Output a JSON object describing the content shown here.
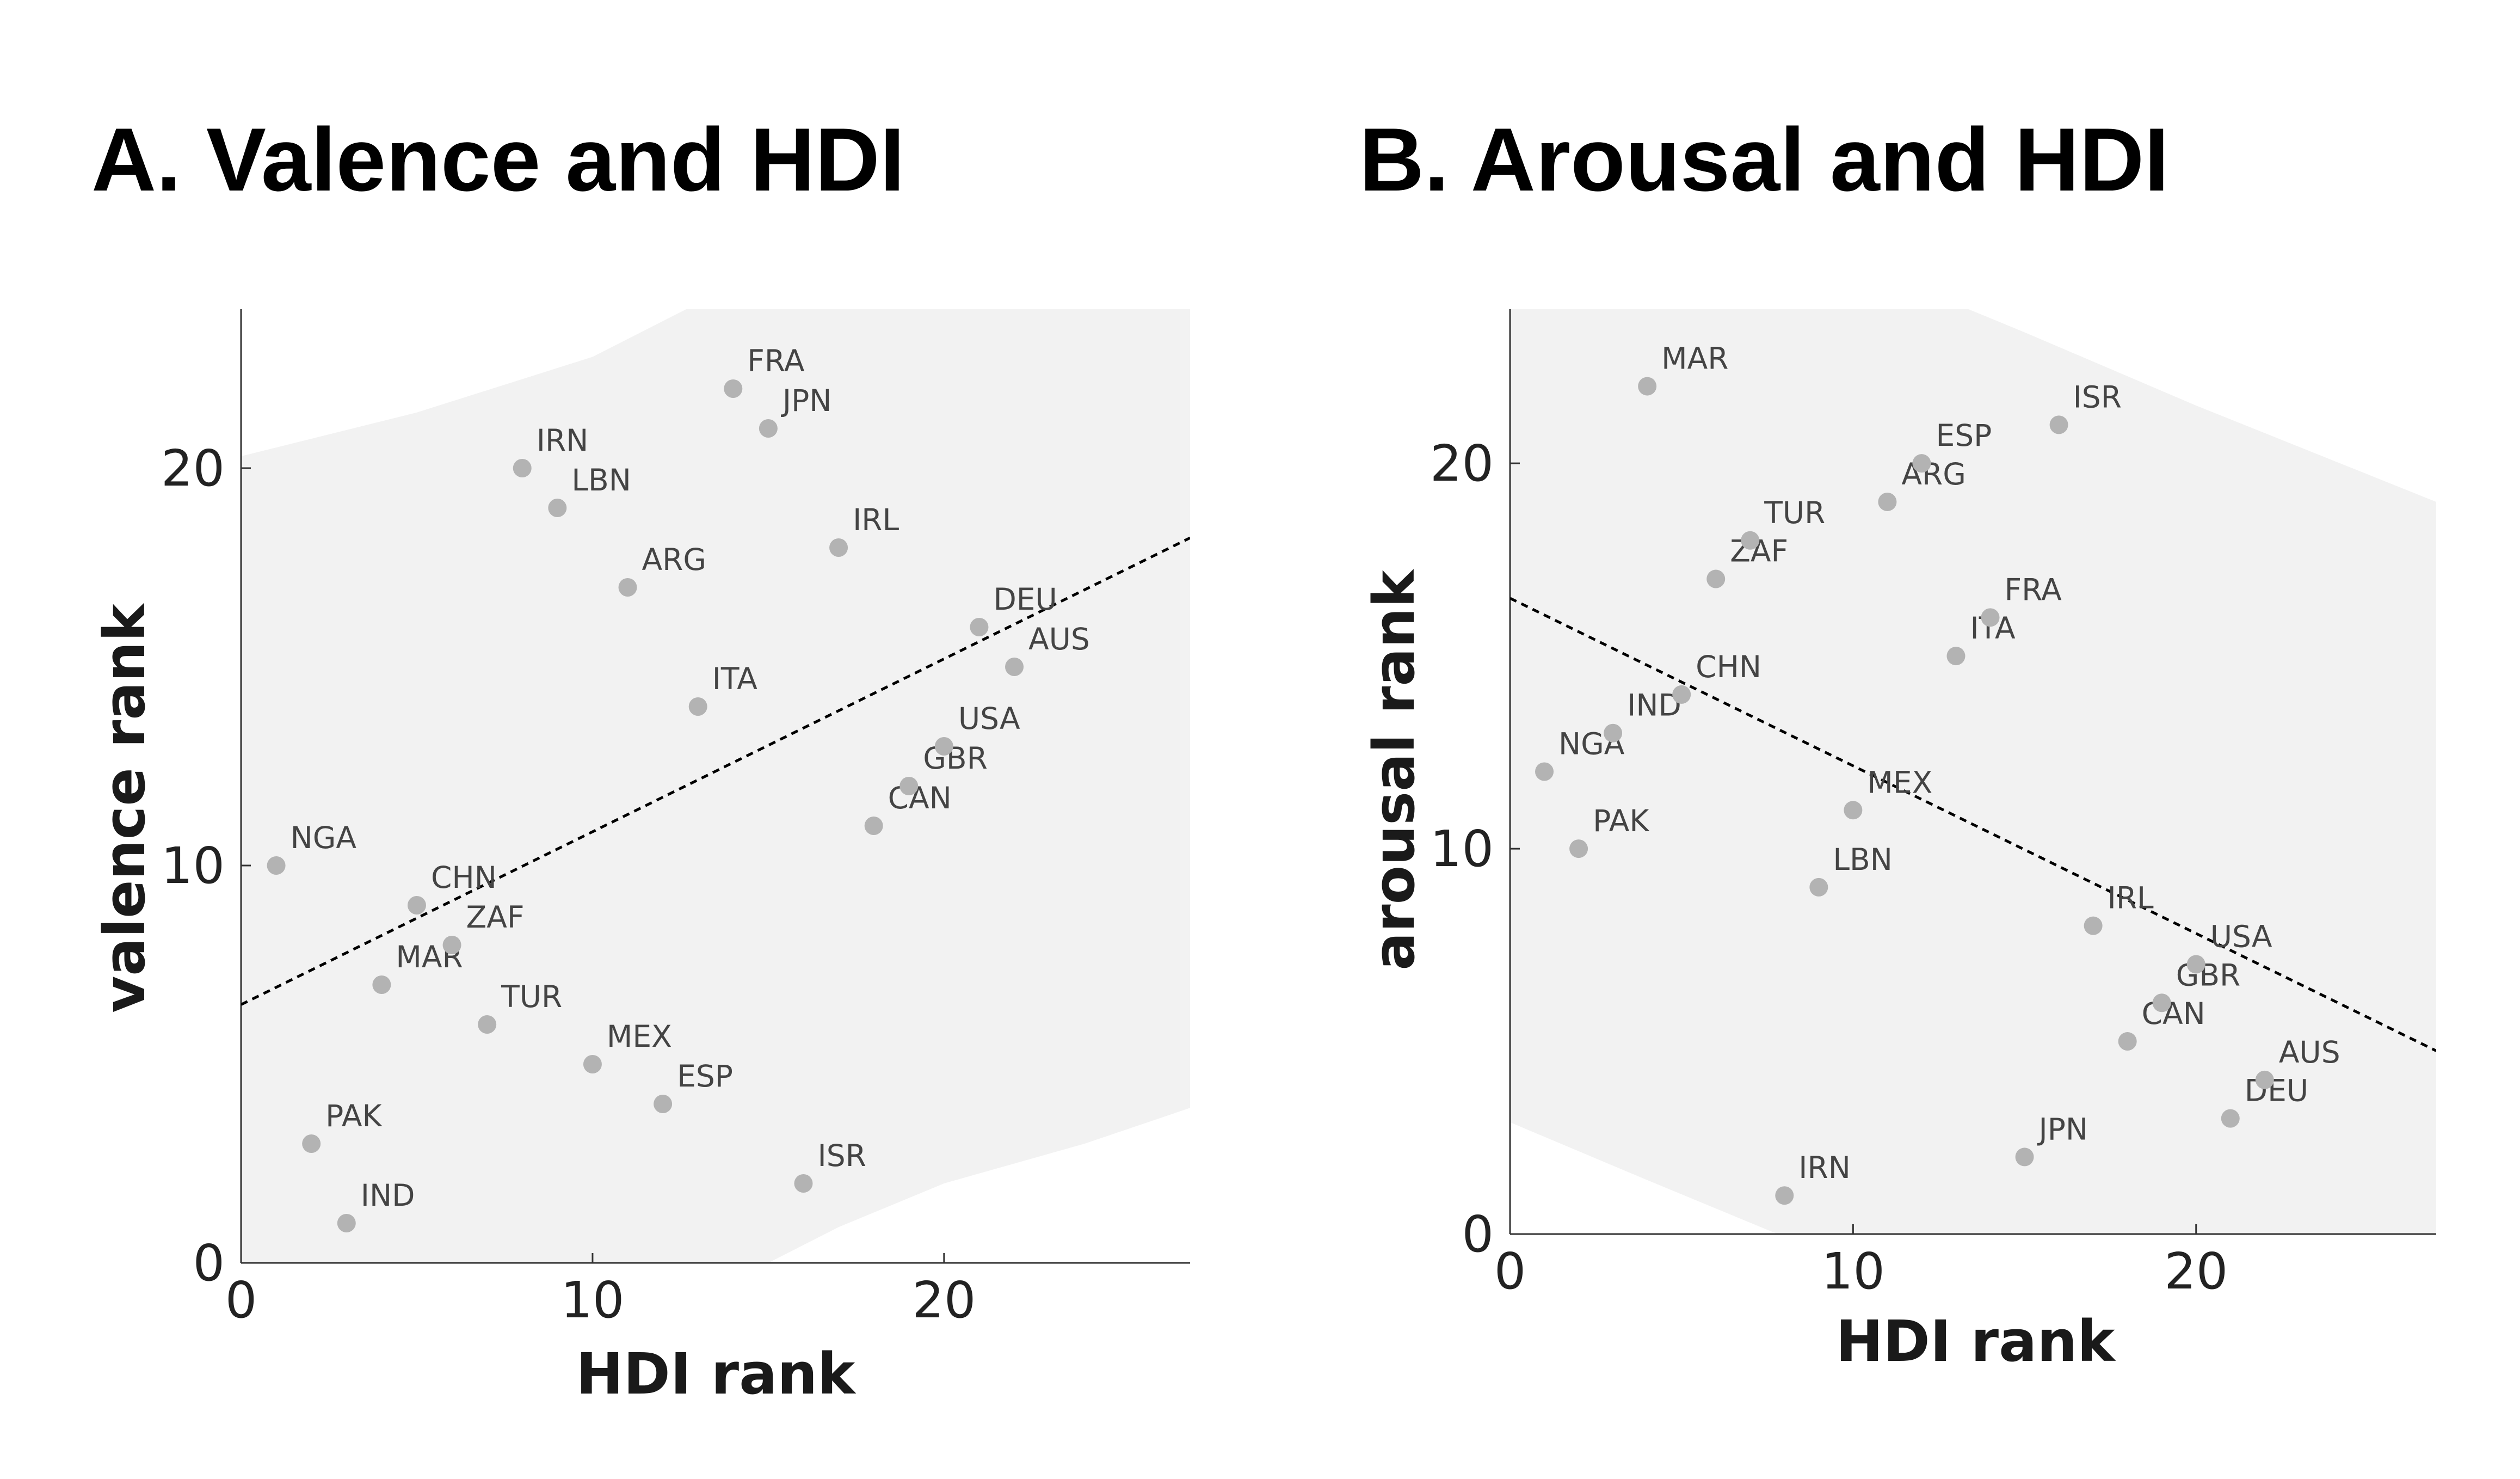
{
  "chart_data": [
    {
      "id": "A",
      "type": "scatter",
      "title": "A. Valence and HDI",
      "xlabel": "HDI rank",
      "ylabel": "valence rank",
      "xlim": [
        0,
        27
      ],
      "ylim": [
        0,
        24
      ],
      "xticks": [
        0,
        10,
        20
      ],
      "yticks": [
        0,
        10,
        20
      ],
      "grid": false,
      "point_color": "#b3b3b3",
      "band_color": "#f2f2f2",
      "fit_line": {
        "style": "dashed",
        "y_at_x0": 6.5,
        "slope": 0.435
      },
      "confidence_band": {
        "upper": [
          [
            0,
            20.3
          ],
          [
            5,
            21.4
          ],
          [
            10,
            22.8
          ],
          [
            14,
            24.6
          ]
        ],
        "lower": [
          [
            15,
            0
          ],
          [
            17,
            0.9
          ],
          [
            20,
            2.0
          ],
          [
            24,
            3.0
          ],
          [
            27,
            3.9
          ]
        ]
      },
      "points": [
        {
          "label": "NGA",
          "x": 1,
          "y": 10
        },
        {
          "label": "PAK",
          "x": 2,
          "y": 3
        },
        {
          "label": "IND",
          "x": 3,
          "y": 1
        },
        {
          "label": "MAR",
          "x": 4,
          "y": 7
        },
        {
          "label": "CHN",
          "x": 5,
          "y": 9
        },
        {
          "label": "ZAF",
          "x": 6,
          "y": 8
        },
        {
          "label": "TUR",
          "x": 7,
          "y": 6
        },
        {
          "label": "IRN",
          "x": 8,
          "y": 20
        },
        {
          "label": "LBN",
          "x": 9,
          "y": 19
        },
        {
          "label": "MEX",
          "x": 10,
          "y": 5
        },
        {
          "label": "ARG",
          "x": 11,
          "y": 17
        },
        {
          "label": "ESP",
          "x": 12,
          "y": 4
        },
        {
          "label": "ITA",
          "x": 13,
          "y": 14
        },
        {
          "label": "FRA",
          "x": 14,
          "y": 22
        },
        {
          "label": "JPN",
          "x": 15,
          "y": 21
        },
        {
          "label": "ISR",
          "x": 16,
          "y": 2
        },
        {
          "label": "IRL",
          "x": 17,
          "y": 18
        },
        {
          "label": "CAN",
          "x": 18,
          "y": 11
        },
        {
          "label": "GBR",
          "x": 19,
          "y": 12
        },
        {
          "label": "USA",
          "x": 20,
          "y": 13
        },
        {
          "label": "DEU",
          "x": 21,
          "y": 16
        },
        {
          "label": "AUS",
          "x": 22,
          "y": 15
        }
      ]
    },
    {
      "id": "B",
      "type": "scatter",
      "title": "B. Arousal and HDI",
      "xlabel": "HDI rank",
      "ylabel": "arousal rank",
      "xlim": [
        0,
        27
      ],
      "ylim": [
        0,
        24
      ],
      "xticks": [
        0,
        10,
        20
      ],
      "yticks": [
        0,
        10,
        20
      ],
      "grid": false,
      "point_color": "#b3b3b3",
      "band_color": "#f2f2f2",
      "fit_line": {
        "style": "dashed",
        "y_at_x0": 16.5,
        "slope": -0.435
      },
      "confidence_band": {
        "upper": [
          [
            12,
            24.5
          ],
          [
            15,
            23.4
          ],
          [
            20,
            21.5
          ],
          [
            27,
            19.0
          ]
        ],
        "lower": [
          [
            0,
            2.9
          ],
          [
            4,
            1.4
          ],
          [
            7.8,
            0
          ]
        ]
      },
      "points": [
        {
          "label": "NGA",
          "x": 1,
          "y": 12
        },
        {
          "label": "PAK",
          "x": 2,
          "y": 10
        },
        {
          "label": "IND",
          "x": 3,
          "y": 13
        },
        {
          "label": "MAR",
          "x": 4,
          "y": 22
        },
        {
          "label": "CHN",
          "x": 5,
          "y": 14
        },
        {
          "label": "ZAF",
          "x": 6,
          "y": 17
        },
        {
          "label": "TUR",
          "x": 7,
          "y": 18
        },
        {
          "label": "IRN",
          "x": 8,
          "y": 1
        },
        {
          "label": "LBN",
          "x": 9,
          "y": 9
        },
        {
          "label": "MEX",
          "x": 10,
          "y": 11
        },
        {
          "label": "ARG",
          "x": 11,
          "y": 19
        },
        {
          "label": "ESP",
          "x": 12,
          "y": 20
        },
        {
          "label": "ITA",
          "x": 13,
          "y": 15
        },
        {
          "label": "FRA",
          "x": 14,
          "y": 16
        },
        {
          "label": "JPN",
          "x": 15,
          "y": 2
        },
        {
          "label": "ISR",
          "x": 16,
          "y": 21
        },
        {
          "label": "IRL",
          "x": 17,
          "y": 8
        },
        {
          "label": "CAN",
          "x": 18,
          "y": 5
        },
        {
          "label": "GBR",
          "x": 19,
          "y": 6
        },
        {
          "label": "USA",
          "x": 20,
          "y": 7
        },
        {
          "label": "DEU",
          "x": 21,
          "y": 3
        },
        {
          "label": "AUS",
          "x": 22,
          "y": 4
        }
      ]
    }
  ]
}
